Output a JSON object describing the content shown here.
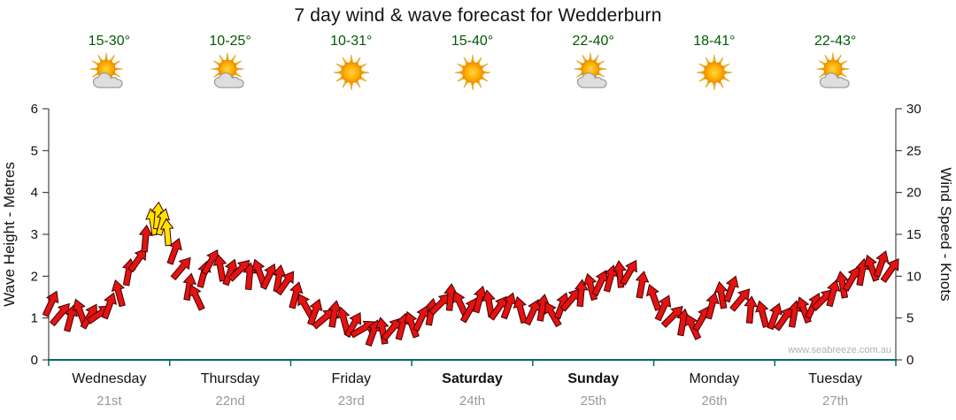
{
  "title": "7 day wind & wave forecast for Wedderburn",
  "watermark": "www.seabreeze.com.au",
  "colors": {
    "arrow_red": "#e51212",
    "arrow_yellow": "#ffe400",
    "arrow_stroke": "#400000",
    "axis_bottom": "#006a6a",
    "axis_side": "#222222",
    "temp_text": "#005a00",
    "day_text": "#111111",
    "date_text": "#999999",
    "watermark_text": "#b0b0b0"
  },
  "axes": {
    "left_label": "Wave Height - Metres",
    "right_label": "Wind Speed - Knots",
    "left_ticks": [
      0,
      1,
      2,
      3,
      4,
      5,
      6
    ],
    "right_ticks": [
      0,
      5,
      10,
      15,
      20,
      25,
      30
    ]
  },
  "days": [
    {
      "name": "Wednesday",
      "date": "21st",
      "temp": "15-30°",
      "icon": "sun-cloud-icon",
      "bold": false
    },
    {
      "name": "Thursday",
      "date": "22nd",
      "temp": "10-25°",
      "icon": "sun-cloud-icon",
      "bold": false
    },
    {
      "name": "Friday",
      "date": "23rd",
      "temp": "10-31°",
      "icon": "sun-icon",
      "bold": false
    },
    {
      "name": "Saturday",
      "date": "24th",
      "temp": "15-40°",
      "icon": "sun-icon",
      "bold": true
    },
    {
      "name": "Sunday",
      "date": "25th",
      "temp": "22-40°",
      "icon": "sun-cloud-icon",
      "bold": true
    },
    {
      "name": "Monday",
      "date": "26th",
      "temp": "18-41°",
      "icon": "sun-icon",
      "bold": false
    },
    {
      "name": "Tuesday",
      "date": "27th",
      "temp": "22-43°",
      "icon": "sun-cloud-icon",
      "bold": false
    }
  ],
  "chart_data": {
    "type": "scatter",
    "title": "7 day wind & wave forecast for Wedderburn",
    "ylabel_left": "Wave Height - Metres",
    "ylabel_right": "Wind Speed - Knots",
    "ylim_left": [
      0,
      6
    ],
    "ylim_right": [
      0,
      30
    ],
    "x_unit": "days from start of Wednesday 21st (0) to end of Tuesday 27th (7)",
    "marker": "wind-direction arrow; height = wave metres (1 m = 5 knots on right axis); yellow = peak arrows",
    "points": [
      [
        0.02,
        1.35,
        25,
        "r"
      ],
      [
        0.1,
        1.1,
        40,
        "r"
      ],
      [
        0.18,
        1.0,
        15,
        "r"
      ],
      [
        0.26,
        1.15,
        -20,
        "r"
      ],
      [
        0.34,
        1.05,
        30,
        "r"
      ],
      [
        0.42,
        1.1,
        55,
        "r"
      ],
      [
        0.5,
        1.3,
        20,
        "r"
      ],
      [
        0.58,
        1.6,
        -15,
        "r"
      ],
      [
        0.66,
        2.1,
        10,
        "r"
      ],
      [
        0.74,
        2.4,
        35,
        "r"
      ],
      [
        0.8,
        2.9,
        5,
        "r"
      ],
      [
        0.86,
        3.3,
        -10,
        "y"
      ],
      [
        0.9,
        3.45,
        5,
        "y"
      ],
      [
        0.94,
        3.3,
        15,
        "y"
      ],
      [
        0.98,
        3.05,
        -5,
        "y"
      ],
      [
        1.04,
        2.6,
        20,
        "r"
      ],
      [
        1.1,
        2.2,
        40,
        "r"
      ],
      [
        1.16,
        1.75,
        10,
        "r"
      ],
      [
        1.22,
        1.5,
        -25,
        "r"
      ],
      [
        1.28,
        2.05,
        15,
        "r"
      ],
      [
        1.34,
        2.35,
        30,
        "r"
      ],
      [
        1.42,
        2.2,
        -10,
        "r"
      ],
      [
        1.5,
        2.1,
        20,
        "r"
      ],
      [
        1.58,
        2.15,
        45,
        "r"
      ],
      [
        1.66,
        2.0,
        5,
        "r"
      ],
      [
        1.74,
        2.1,
        -20,
        "r"
      ],
      [
        1.82,
        2.0,
        25,
        "r"
      ],
      [
        1.9,
        1.95,
        10,
        "r"
      ],
      [
        1.96,
        1.85,
        35,
        "r"
      ],
      [
        2.04,
        1.55,
        15,
        "r"
      ],
      [
        2.12,
        1.3,
        -30,
        "r"
      ],
      [
        2.2,
        1.15,
        20,
        "r"
      ],
      [
        2.28,
        1.0,
        50,
        "r"
      ],
      [
        2.36,
        1.1,
        10,
        "r"
      ],
      [
        2.44,
        0.95,
        -15,
        "r"
      ],
      [
        2.52,
        0.85,
        30,
        "r"
      ],
      [
        2.6,
        0.75,
        60,
        "r"
      ],
      [
        2.68,
        0.65,
        20,
        "r"
      ],
      [
        2.76,
        0.7,
        -10,
        "r"
      ],
      [
        2.84,
        0.75,
        40,
        "r"
      ],
      [
        2.92,
        0.8,
        15,
        "r"
      ],
      [
        3.0,
        0.85,
        -20,
        "r"
      ],
      [
        3.08,
        1.0,
        25,
        "r"
      ],
      [
        3.16,
        1.15,
        10,
        "r"
      ],
      [
        3.24,
        1.35,
        45,
        "r"
      ],
      [
        3.32,
        1.5,
        5,
        "r"
      ],
      [
        3.4,
        1.35,
        -25,
        "r"
      ],
      [
        3.48,
        1.2,
        30,
        "r"
      ],
      [
        3.56,
        1.45,
        15,
        "r"
      ],
      [
        3.64,
        1.35,
        -10,
        "r"
      ],
      [
        3.72,
        1.25,
        35,
        "r"
      ],
      [
        3.8,
        1.3,
        20,
        "r"
      ],
      [
        3.9,
        1.2,
        -15,
        "r"
      ],
      [
        4.0,
        1.15,
        25,
        "r"
      ],
      [
        4.08,
        1.25,
        10,
        "r"
      ],
      [
        4.16,
        1.1,
        -30,
        "r"
      ],
      [
        4.24,
        1.3,
        20,
        "r"
      ],
      [
        4.32,
        1.45,
        40,
        "r"
      ],
      [
        4.4,
        1.6,
        5,
        "r"
      ],
      [
        4.48,
        1.75,
        -15,
        "r"
      ],
      [
        4.56,
        1.85,
        25,
        "r"
      ],
      [
        4.64,
        1.95,
        15,
        "r"
      ],
      [
        4.72,
        2.05,
        -5,
        "r"
      ],
      [
        4.8,
        2.1,
        30,
        "r"
      ],
      [
        4.9,
        1.8,
        10,
        "r"
      ],
      [
        5.0,
        1.5,
        -20,
        "r"
      ],
      [
        5.08,
        1.25,
        25,
        "r"
      ],
      [
        5.16,
        1.05,
        45,
        "r"
      ],
      [
        5.24,
        0.9,
        10,
        "r"
      ],
      [
        5.32,
        0.8,
        -25,
        "r"
      ],
      [
        5.4,
        1.0,
        30,
        "r"
      ],
      [
        5.48,
        1.3,
        15,
        "r"
      ],
      [
        5.56,
        1.55,
        -10,
        "r"
      ],
      [
        5.64,
        1.7,
        20,
        "r"
      ],
      [
        5.72,
        1.45,
        40,
        "r"
      ],
      [
        5.8,
        1.2,
        5,
        "r"
      ],
      [
        5.9,
        1.1,
        -15,
        "r"
      ],
      [
        6.0,
        1.05,
        20,
        "r"
      ],
      [
        6.08,
        1.0,
        35,
        "r"
      ],
      [
        6.16,
        1.1,
        10,
        "r"
      ],
      [
        6.24,
        1.2,
        -20,
        "r"
      ],
      [
        6.32,
        1.3,
        25,
        "r"
      ],
      [
        6.4,
        1.45,
        45,
        "r"
      ],
      [
        6.48,
        1.6,
        15,
        "r"
      ],
      [
        6.56,
        1.8,
        -10,
        "r"
      ],
      [
        6.64,
        1.95,
        30,
        "r"
      ],
      [
        6.72,
        2.1,
        10,
        "r"
      ],
      [
        6.8,
        2.2,
        -20,
        "r"
      ],
      [
        6.88,
        2.3,
        20,
        "r"
      ],
      [
        6.96,
        2.15,
        35,
        "r"
      ]
    ]
  }
}
